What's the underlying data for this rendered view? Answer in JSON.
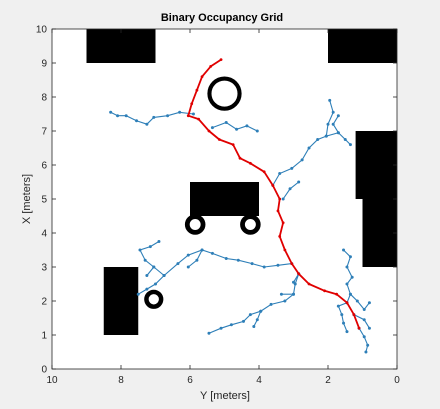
{
  "chart_data": {
    "type": "occupancy_grid_with_rrt",
    "title": "Binary Occupancy Grid",
    "xlabel": "Y [meters]",
    "ylabel": "X [meters]",
    "xlim": [
      10,
      0
    ],
    "ylim": [
      0,
      10
    ],
    "x_reversed": true,
    "xticks": [
      10,
      8,
      6,
      4,
      2,
      0
    ],
    "xtick_labels": [
      "10",
      "8",
      "6",
      "4",
      "2",
      "0"
    ],
    "yticks": [
      0,
      1,
      2,
      3,
      4,
      5,
      6,
      7,
      8,
      9,
      10
    ],
    "ytick_labels": [
      "0",
      "1",
      "2",
      "3",
      "4",
      "5",
      "6",
      "7",
      "8",
      "9",
      "10"
    ],
    "grid": false,
    "colors": {
      "obstacle": "#000000",
      "free": "#ffffff",
      "tree": "#2e7fb8",
      "path": "#e00000",
      "figure_background": "#f0f0f0"
    },
    "obstacles": [
      {
        "shape": "rect",
        "y_range": [
          7,
          9
        ],
        "x_range": [
          9,
          10
        ]
      },
      {
        "shape": "rect",
        "y_range": [
          0,
          2
        ],
        "x_range": [
          9,
          10
        ]
      },
      {
        "shape": "rect",
        "y_range": [
          0,
          1.2
        ],
        "x_range": [
          5,
          7
        ]
      },
      {
        "shape": "rect",
        "y_range": [
          0,
          1
        ],
        "x_range": [
          3,
          5.2
        ]
      },
      {
        "shape": "rect",
        "y_range": [
          4,
          6
        ],
        "x_range": [
          4.5,
          5.5
        ]
      },
      {
        "shape": "rect",
        "y_range": [
          7.5,
          8.5
        ],
        "x_range": [
          1,
          3
        ]
      },
      {
        "shape": "ring",
        "center": [
          5,
          8.1
        ],
        "r_outer": 0.5,
        "r_inner": 0.38
      },
      {
        "shape": "ring",
        "center": [
          5.85,
          4.25
        ],
        "r_outer": 0.3,
        "r_inner": 0.16
      },
      {
        "shape": "ring",
        "center": [
          4.25,
          4.25
        ],
        "r_outer": 0.3,
        "r_inner": 0.16
      },
      {
        "shape": "ring",
        "center": [
          7.05,
          2.05
        ],
        "r_outer": 0.28,
        "r_inner": 0.15
      }
    ],
    "path_points": [
      [
        5.1,
        9.1
      ],
      [
        5.4,
        8.9
      ],
      [
        5.65,
        8.6
      ],
      [
        5.8,
        8.2
      ],
      [
        5.95,
        7.8
      ],
      [
        6.05,
        7.45
      ],
      [
        5.75,
        7.35
      ],
      [
        5.45,
        7.0
      ],
      [
        5.15,
        6.75
      ],
      [
        4.75,
        6.6
      ],
      [
        4.55,
        6.2
      ],
      [
        4.25,
        6.05
      ],
      [
        3.85,
        5.8
      ],
      [
        3.6,
        5.4
      ],
      [
        3.4,
        5.0
      ],
      [
        3.45,
        4.65
      ],
      [
        3.3,
        4.3
      ],
      [
        3.4,
        3.9
      ],
      [
        3.25,
        3.5
      ],
      [
        3.05,
        3.1
      ],
      [
        2.85,
        2.8
      ],
      [
        2.55,
        2.5
      ],
      [
        2.1,
        2.3
      ],
      [
        1.75,
        2.2
      ],
      [
        1.45,
        1.95
      ],
      [
        1.25,
        1.6
      ],
      [
        1.1,
        1.2
      ]
    ],
    "tree_branches": [
      [
        [
          5.9,
          7.5
        ],
        [
          6.3,
          7.55
        ],
        [
          6.65,
          7.45
        ],
        [
          7.05,
          7.4
        ],
        [
          7.25,
          7.2
        ],
        [
          7.55,
          7.3
        ],
        [
          7.85,
          7.45
        ],
        [
          8.1,
          7.45
        ],
        [
          8.3,
          7.55
        ]
      ],
      [
        [
          5.35,
          7.1
        ],
        [
          4.95,
          7.25
        ],
        [
          4.65,
          7.05
        ],
        [
          4.35,
          7.15
        ],
        [
          4.05,
          7.0
        ]
      ],
      [
        [
          3.6,
          5.4
        ],
        [
          3.4,
          5.75
        ],
        [
          3.05,
          5.9
        ],
        [
          2.75,
          6.15
        ],
        [
          2.55,
          6.5
        ],
        [
          2.3,
          6.75
        ],
        [
          2.05,
          6.85
        ],
        [
          1.7,
          6.95
        ],
        [
          1.5,
          6.75
        ],
        [
          1.35,
          6.6
        ]
      ],
      [
        [
          2.05,
          6.85
        ],
        [
          2.0,
          7.2
        ],
        [
          1.85,
          7.55
        ],
        [
          1.95,
          7.9
        ]
      ],
      [
        [
          1.7,
          6.95
        ],
        [
          1.85,
          7.2
        ],
        [
          1.7,
          7.45
        ]
      ],
      [
        [
          3.3,
          5.0
        ],
        [
          3.1,
          5.3
        ],
        [
          2.85,
          5.5
        ]
      ],
      [
        [
          3.05,
          3.1
        ],
        [
          3.45,
          3.05
        ],
        [
          3.85,
          3.0
        ],
        [
          4.2,
          3.1
        ],
        [
          4.6,
          3.2
        ],
        [
          4.95,
          3.25
        ],
        [
          5.35,
          3.4
        ],
        [
          5.65,
          3.5
        ],
        [
          6.05,
          3.35
        ],
        [
          6.35,
          3.1
        ],
        [
          6.75,
          2.75
        ],
        [
          7.0,
          2.5
        ],
        [
          7.25,
          2.35
        ],
        [
          7.5,
          2.2
        ]
      ],
      [
        [
          5.65,
          3.5
        ],
        [
          5.8,
          3.2
        ],
        [
          6.05,
          3.0
        ]
      ],
      [
        [
          6.75,
          2.75
        ],
        [
          7.05,
          3.0
        ],
        [
          7.3,
          3.2
        ],
        [
          7.45,
          3.5
        ],
        [
          7.15,
          3.6
        ],
        [
          6.9,
          3.75
        ]
      ],
      [
        [
          7.05,
          3.0
        ],
        [
          7.25,
          2.75
        ]
      ],
      [
        [
          2.85,
          2.8
        ],
        [
          2.95,
          2.5
        ],
        [
          3.0,
          2.2
        ],
        [
          3.25,
          2.0
        ],
        [
          3.65,
          1.9
        ],
        [
          3.95,
          1.7
        ],
        [
          4.25,
          1.6
        ],
        [
          4.45,
          1.4
        ],
        [
          4.8,
          1.3
        ],
        [
          5.1,
          1.2
        ],
        [
          5.45,
          1.05
        ]
      ],
      [
        [
          3.95,
          1.7
        ],
        [
          4.05,
          1.45
        ],
        [
          4.15,
          1.25
        ]
      ],
      [
        [
          3.0,
          2.2
        ],
        [
          3.35,
          2.2
        ]
      ],
      [
        [
          2.85,
          2.8
        ],
        [
          3.0,
          2.55
        ]
      ],
      [
        [
          1.45,
          1.95
        ],
        [
          1.7,
          1.85
        ],
        [
          1.6,
          1.6
        ],
        [
          1.55,
          1.35
        ],
        [
          1.45,
          1.1
        ]
      ],
      [
        [
          1.45,
          1.95
        ],
        [
          1.35,
          2.2
        ],
        [
          1.45,
          2.5
        ],
        [
          1.3,
          2.7
        ],
        [
          1.45,
          3.0
        ],
        [
          1.35,
          3.3
        ],
        [
          1.55,
          3.5
        ]
      ],
      [
        [
          1.35,
          2.2
        ],
        [
          1.15,
          2.0
        ],
        [
          0.95,
          1.75
        ],
        [
          0.8,
          1.95
        ]
      ],
      [
        [
          1.25,
          1.6
        ],
        [
          0.95,
          1.45
        ],
        [
          0.8,
          1.2
        ]
      ],
      [
        [
          1.1,
          1.2
        ],
        [
          0.95,
          0.95
        ],
        [
          0.85,
          0.7
        ],
        [
          0.9,
          0.5
        ]
      ]
    ]
  }
}
